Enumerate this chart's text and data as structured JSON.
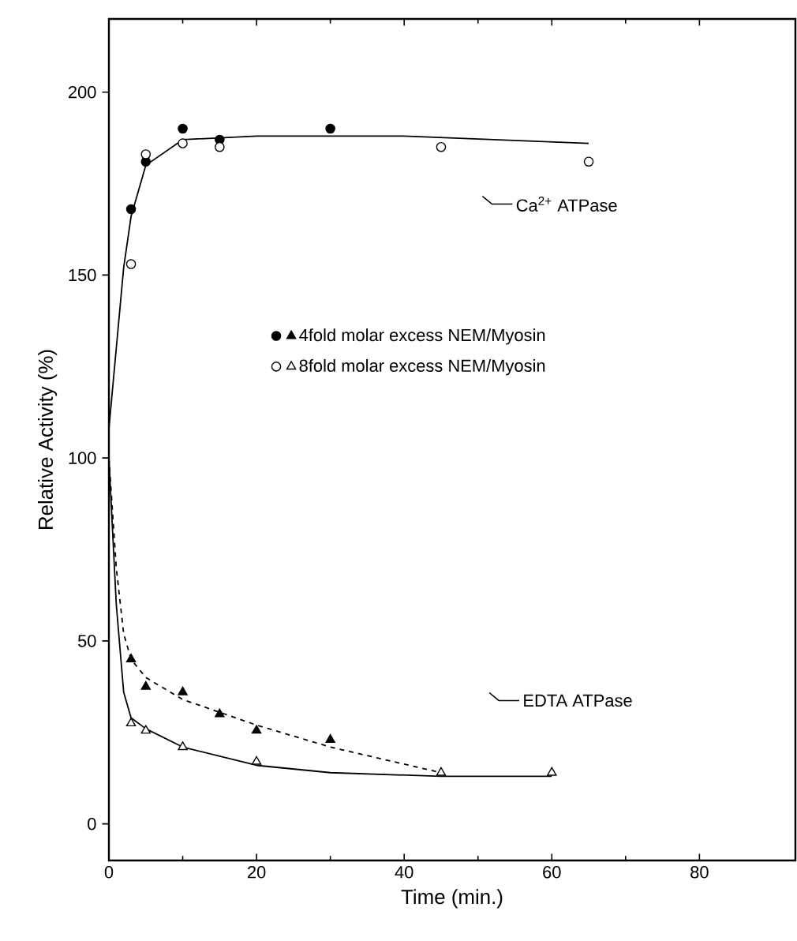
{
  "chart_data": {
    "type": "scatter",
    "xlabel": "Time (min.)",
    "ylabel": "Relative Activity (%)",
    "xlim": [
      0,
      93
    ],
    "ylim": [
      -10,
      220
    ],
    "xticks": [
      0,
      20,
      40,
      60,
      80
    ],
    "yticks": [
      0,
      50,
      100,
      150,
      200
    ],
    "grid": false,
    "legend": "center",
    "annotations": [
      "Ca$^{2+}$ ATPase",
      "EDTA ATPase"
    ],
    "series": [
      {
        "color": "#000000",
        "marker": "circle",
        "x": [
          3,
          5,
          10,
          15,
          30
        ],
        "values": [
          168,
          181,
          190,
          187,
          190
        ]
      },
      {
        "color": "#ffffff",
        "marker": "circle",
        "x": [
          3,
          5,
          10,
          15,
          45,
          65
        ],
        "values": [
          153,
          183,
          186,
          185,
          185,
          181
        ]
      },
      {
        "name": "4fold molar excess NEM/Myosin",
        "color": "#000000",
        "marker": "triangle",
        "x": [
          3,
          5,
          10,
          15,
          20,
          30
        ],
        "values": [
          45,
          37.5,
          36,
          30,
          25.5,
          23
        ]
      },
      {
        "name": "8fold molar excess NEM/Myosin",
        "color": "#ffffff",
        "marker": "triangle",
        "x": [
          3,
          5,
          10,
          20,
          45,
          60
        ],
        "values": [
          27.5,
          25.5,
          21,
          17,
          14,
          14
        ]
      },
      {
        "type": "line",
        "color": "#000000",
        "marker": "none",
        "line_style": "solid",
        "x": [
          0,
          1,
          2,
          3,
          5,
          10,
          20,
          40,
          65
        ],
        "values": [
          108,
          130,
          152,
          166,
          180,
          187,
          188,
          188,
          186
        ]
      },
      {
        "type": "line",
        "color": "#000000",
        "marker": "none",
        "line_style": "dashed",
        "x": [
          0,
          1,
          2,
          3,
          5,
          10,
          20,
          30,
          45
        ],
        "values": [
          100,
          70,
          52,
          45,
          40,
          34,
          27,
          21,
          14
        ]
      },
      {
        "type": "line",
        "color": "#000000",
        "marker": "none",
        "line_style": "solid",
        "x": [
          0,
          1,
          2,
          3,
          5,
          10,
          20,
          30,
          45,
          60
        ],
        "values": [
          100,
          60,
          36,
          29,
          26,
          21,
          16,
          14,
          13,
          13
        ]
      }
    ]
  }
}
